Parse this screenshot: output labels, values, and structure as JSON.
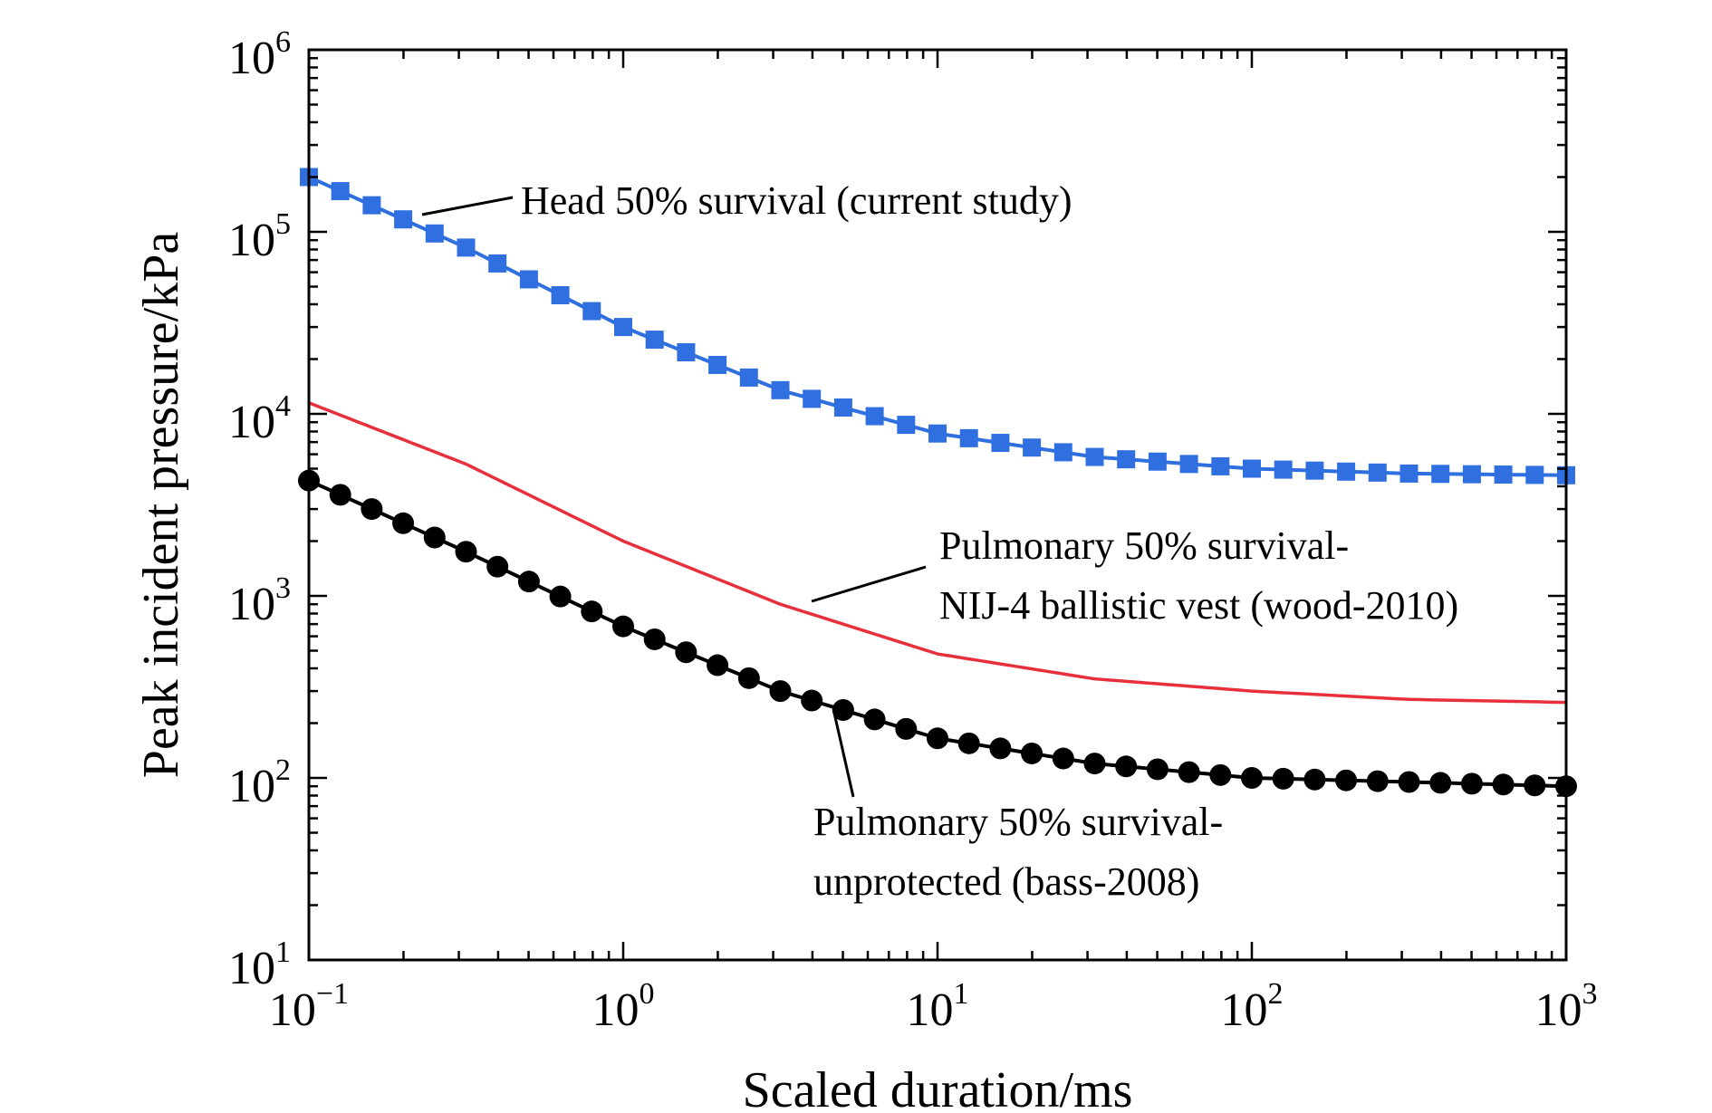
{
  "chart_data": {
    "type": "line",
    "title": "",
    "xlabel": "Scaled duration/ms",
    "ylabel": "Peak incident pressure/kPa",
    "x_scale": "log",
    "y_scale": "log",
    "xlim": [
      0.1,
      1000
    ],
    "ylim": [
      10,
      1000000
    ],
    "grid": false,
    "legend": "none",
    "x_ticks": [
      {
        "base": "10",
        "exp": "−1",
        "value": 0.1
      },
      {
        "base": "10",
        "exp": "0",
        "value": 1
      },
      {
        "base": "10",
        "exp": "1",
        "value": 10
      },
      {
        "base": "10",
        "exp": "2",
        "value": 100
      },
      {
        "base": "10",
        "exp": "3",
        "value": 1000
      }
    ],
    "y_ticks": [
      {
        "base": "10",
        "exp": "1",
        "value": 10
      },
      {
        "base": "10",
        "exp": "2",
        "value": 100
      },
      {
        "base": "10",
        "exp": "3",
        "value": 1000
      },
      {
        "base": "10",
        "exp": "4",
        "value": 10000
      },
      {
        "base": "10",
        "exp": "5",
        "value": 100000
      },
      {
        "base": "10",
        "exp": "6",
        "value": 1000000
      }
    ],
    "series": [
      {
        "name": "Head 50% survival (current study)",
        "color": "#2f6fe0",
        "marker": "square",
        "x": [
          0.1,
          0.316,
          1,
          3.16,
          10,
          31.6,
          100,
          316,
          1000
        ],
        "y": [
          200000,
          82000,
          30000,
          13500,
          7800,
          5800,
          5000,
          4700,
          4600
        ]
      },
      {
        "name": "Pulmonary 50% survival-NIJ-4 ballistic vest (wood-2010)",
        "color": "#e8303c",
        "marker": "none",
        "x": [
          0.1,
          0.316,
          1,
          3.16,
          10,
          31.6,
          100,
          316,
          1000
        ],
        "y": [
          11500,
          5300,
          2000,
          900,
          480,
          350,
          300,
          270,
          260
        ]
      },
      {
        "name": "Pulmonary 50% survival-unprotected (bass-2008)",
        "color": "#000000",
        "marker": "circle",
        "x": [
          0.1,
          0.316,
          1,
          3.16,
          10,
          31.6,
          100,
          316,
          1000
        ],
        "y": [
          4300,
          1750,
          680,
          300,
          165,
          120,
          100,
          95,
          90
        ]
      }
    ],
    "annotations": [
      {
        "lines": [
          "Head 50% survival (current study)"
        ],
        "series": 0,
        "pointer_x": 0.22
      },
      {
        "lines": [
          "Pulmonary 50% survival-",
          "NIJ-4 ballistic vest (wood-2010)"
        ],
        "series": 1,
        "pointer_x": 4
      },
      {
        "lines": [
          "Pulmonary 50% survival-",
          "unprotected (bass-2008)"
        ],
        "series": 2,
        "pointer_x": 4.7
      }
    ]
  }
}
